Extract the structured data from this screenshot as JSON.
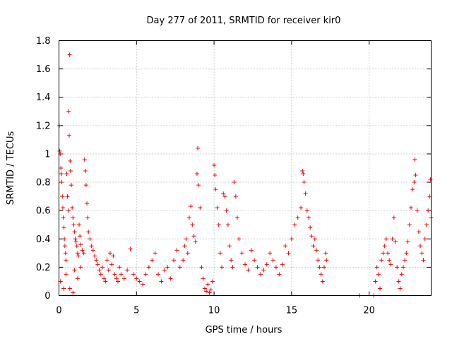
{
  "chart_data": {
    "type": "scatter",
    "title": "Day 277 of 2011, SRMTID for receiver kir0",
    "xlabel": "GPS time / hours",
    "ylabel": "SRMTID / TECUs",
    "xlim": [
      0,
      24
    ],
    "ylim": [
      0,
      1.8
    ],
    "xticks": [
      0,
      5,
      10,
      15,
      20
    ],
    "xtick_labels": [
      "0",
      "5",
      "10",
      "15",
      "20"
    ],
    "yticks": [
      0,
      0.2,
      0.4,
      0.6,
      0.8,
      1,
      1.2,
      1.4,
      1.6,
      1.8
    ],
    "ytick_labels": [
      "0",
      "0.2",
      "0.4",
      "0.6",
      "0.8",
      "1",
      "1.2",
      "1.4",
      "1.6",
      "1.8"
    ],
    "grid": true,
    "marker": "+",
    "color": "#ff0000",
    "series": [
      {
        "name": "SRMTID kir0",
        "points": [
          [
            0.02,
            1.2
          ],
          [
            0.05,
            1.02
          ],
          [
            0.08,
            1.0
          ],
          [
            0.12,
            0.9
          ],
          [
            0.15,
            0.86
          ],
          [
            0.18,
            0.8
          ],
          [
            0.22,
            0.7
          ],
          [
            0.25,
            0.62
          ],
          [
            0.28,
            0.55
          ],
          [
            0.32,
            0.48
          ],
          [
            0.35,
            0.4
          ],
          [
            0.38,
            0.35
          ],
          [
            0.42,
            0.3
          ],
          [
            0.45,
            0.25
          ],
          [
            0.5,
            0.86
          ],
          [
            0.55,
            0.7
          ],
          [
            0.6,
            0.6
          ],
          [
            0.62,
            1.3
          ],
          [
            0.66,
            1.13
          ],
          [
            0.68,
            1.7
          ],
          [
            0.72,
            0.95
          ],
          [
            0.75,
            0.88
          ],
          [
            0.8,
            0.78
          ],
          [
            0.85,
            0.62
          ],
          [
            0.9,
            0.55
          ],
          [
            0.95,
            0.5
          ],
          [
            1.0,
            0.45
          ],
          [
            1.05,
            0.4
          ],
          [
            1.1,
            0.38
          ],
          [
            1.15,
            0.35
          ],
          [
            1.2,
            0.3
          ],
          [
            1.25,
            0.28
          ],
          [
            1.3,
            0.5
          ],
          [
            1.35,
            0.42
          ],
          [
            1.4,
            0.36
          ],
          [
            1.5,
            0.32
          ],
          [
            1.6,
            0.3
          ],
          [
            1.65,
            0.96
          ],
          [
            1.7,
            0.88
          ],
          [
            1.75,
            0.78
          ],
          [
            1.8,
            0.65
          ],
          [
            1.85,
            0.55
          ],
          [
            1.9,
            0.45
          ],
          [
            2.0,
            0.4
          ],
          [
            2.1,
            0.35
          ],
          [
            2.2,
            0.32
          ],
          [
            2.3,
            0.28
          ],
          [
            2.4,
            0.25
          ],
          [
            0.1,
            0.1
          ],
          [
            0.3,
            0.05
          ],
          [
            0.45,
            0.15
          ],
          [
            0.7,
            0.05
          ],
          [
            0.9,
            0.02
          ],
          [
            1.0,
            0.18
          ],
          [
            1.2,
            0.12
          ],
          [
            1.4,
            0.2
          ],
          [
            2.5,
            0.22
          ],
          [
            2.6,
            0.18
          ],
          [
            2.7,
            0.15
          ],
          [
            2.8,
            0.2
          ],
          [
            2.9,
            0.12
          ],
          [
            3.0,
            0.1
          ],
          [
            3.1,
            0.25
          ],
          [
            3.2,
            0.18
          ],
          [
            3.3,
            0.3
          ],
          [
            3.4,
            0.22
          ],
          [
            3.5,
            0.28
          ],
          [
            3.6,
            0.15
          ],
          [
            3.7,
            0.12
          ],
          [
            3.8,
            0.1
          ],
          [
            3.9,
            0.2
          ],
          [
            4.0,
            0.15
          ],
          [
            4.2,
            0.12
          ],
          [
            4.4,
            0.18
          ],
          [
            4.6,
            0.33
          ],
          [
            4.8,
            0.15
          ],
          [
            5.0,
            0.12
          ],
          [
            5.2,
            0.1
          ],
          [
            5.4,
            0.08
          ],
          [
            5.6,
            0.15
          ],
          [
            5.8,
            0.2
          ],
          [
            6.0,
            0.25
          ],
          [
            6.2,
            0.3
          ],
          [
            6.4,
            0.15
          ],
          [
            6.6,
            0.1
          ],
          [
            6.8,
            0.18
          ],
          [
            7.0,
            0.2
          ],
          [
            7.2,
            0.12
          ],
          [
            7.4,
            0.25
          ],
          [
            7.6,
            0.32
          ],
          [
            7.8,
            0.2
          ],
          [
            8.0,
            0.25
          ],
          [
            8.1,
            0.35
          ],
          [
            8.2,
            0.4
          ],
          [
            8.3,
            0.3
          ],
          [
            8.4,
            0.55
          ],
          [
            8.5,
            0.63
          ],
          [
            8.6,
            0.5
          ],
          [
            8.7,
            0.42
          ],
          [
            8.8,
            0.38
          ],
          [
            8.9,
            0.86
          ],
          [
            8.95,
            1.04
          ],
          [
            9.0,
            0.78
          ],
          [
            9.1,
            0.62
          ],
          [
            9.2,
            0.2
          ],
          [
            9.3,
            0.12
          ],
          [
            9.4,
            0.05
          ],
          [
            9.5,
            0.03
          ],
          [
            9.6,
            0.08
          ],
          [
            9.7,
            0.02
          ],
          [
            9.8,
            0.04
          ],
          [
            9.9,
            0.1
          ],
          [
            10.0,
            0.92
          ],
          [
            10.05,
            0.85
          ],
          [
            10.1,
            0.75
          ],
          [
            10.2,
            0.62
          ],
          [
            10.3,
            0.5
          ],
          [
            10.4,
            0.3
          ],
          [
            10.5,
            0.2
          ],
          [
            10.6,
            0.72
          ],
          [
            10.7,
            0.7
          ],
          [
            10.8,
            0.6
          ],
          [
            10.9,
            0.5
          ],
          [
            11.0,
            0.35
          ],
          [
            11.1,
            0.25
          ],
          [
            11.2,
            0.2
          ],
          [
            11.3,
            0.8
          ],
          [
            11.4,
            0.7
          ],
          [
            11.5,
            0.55
          ],
          [
            11.6,
            0.4
          ],
          [
            11.8,
            0.3
          ],
          [
            12.0,
            0.22
          ],
          [
            12.2,
            0.18
          ],
          [
            12.4,
            0.32
          ],
          [
            12.6,
            0.25
          ],
          [
            12.8,
            0.2
          ],
          [
            13.0,
            0.15
          ],
          [
            13.2,
            0.18
          ],
          [
            13.4,
            0.22
          ],
          [
            13.6,
            0.3
          ],
          [
            13.8,
            0.25
          ],
          [
            14.0,
            0.2
          ],
          [
            14.2,
            0.15
          ],
          [
            14.4,
            0.22
          ],
          [
            14.6,
            0.35
          ],
          [
            14.8,
            0.3
          ],
          [
            15.0,
            0.4
          ],
          [
            15.2,
            0.5
          ],
          [
            15.4,
            0.55
          ],
          [
            15.6,
            0.62
          ],
          [
            15.7,
            0.88
          ],
          [
            15.75,
            0.86
          ],
          [
            15.8,
            0.8
          ],
          [
            15.9,
            0.72
          ],
          [
            16.0,
            0.6
          ],
          [
            16.1,
            0.55
          ],
          [
            16.2,
            0.48
          ],
          [
            16.3,
            0.42
          ],
          [
            16.4,
            0.35
          ],
          [
            16.5,
            0.4
          ],
          [
            16.6,
            0.32
          ],
          [
            16.7,
            0.25
          ],
          [
            16.8,
            0.2
          ],
          [
            16.9,
            0.15
          ],
          [
            17.0,
            0.1
          ],
          [
            17.1,
            0.2
          ],
          [
            17.2,
            0.3
          ],
          [
            17.25,
            0.25
          ],
          [
            19.4,
            0.0
          ],
          [
            20.3,
            0.0
          ],
          [
            20.4,
            0.1
          ],
          [
            20.5,
            0.2
          ],
          [
            20.6,
            0.15
          ],
          [
            20.7,
            0.05
          ],
          [
            20.8,
            0.25
          ],
          [
            20.9,
            0.3
          ],
          [
            21.0,
            0.35
          ],
          [
            21.1,
            0.4
          ],
          [
            21.2,
            0.3
          ],
          [
            21.3,
            0.25
          ],
          [
            21.4,
            0.22
          ],
          [
            21.5,
            0.4
          ],
          [
            21.6,
            0.55
          ],
          [
            21.7,
            0.38
          ],
          [
            21.8,
            0.2
          ],
          [
            21.9,
            0.1
          ],
          [
            22.0,
            0.05
          ],
          [
            22.1,
            0.15
          ],
          [
            22.2,
            0.2
          ],
          [
            22.3,
            0.25
          ],
          [
            22.4,
            0.3
          ],
          [
            22.5,
            0.38
          ],
          [
            22.6,
            0.5
          ],
          [
            22.7,
            0.62
          ],
          [
            22.8,
            0.75
          ],
          [
            22.9,
            0.8
          ],
          [
            22.95,
            0.96
          ],
          [
            23.0,
            0.85
          ],
          [
            23.1,
            0.6
          ],
          [
            23.2,
            0.45
          ],
          [
            23.3,
            0.35
          ],
          [
            23.4,
            0.3
          ],
          [
            23.5,
            0.25
          ],
          [
            23.6,
            0.4
          ],
          [
            23.7,
            0.5
          ],
          [
            23.8,
            0.6
          ],
          [
            23.9,
            0.7
          ],
          [
            23.95,
            0.82
          ],
          [
            24.0,
            0.55
          ]
        ]
      }
    ]
  }
}
